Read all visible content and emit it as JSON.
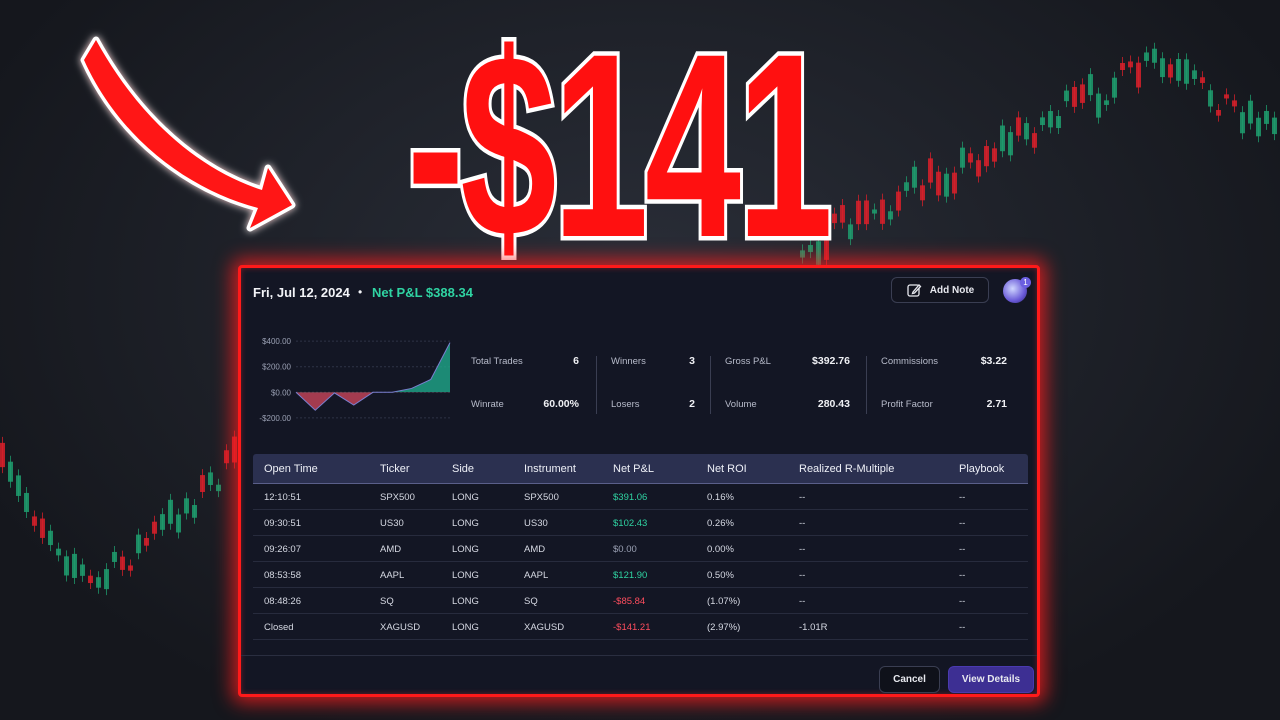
{
  "headline": "-$141",
  "dialog": {
    "date": "Fri, Jul 12, 2024",
    "separator": "•",
    "net_pnl": "Net P&L $388.34",
    "add_note": "Add Note",
    "avatar_badge": "1",
    "mini_chart": {
      "type": "area",
      "values": [
        0,
        -140,
        -5,
        -100,
        0,
        0,
        30,
        100,
        388
      ],
      "ylim": [
        -240,
        440
      ],
      "yticks": [
        {
          "value": 400,
          "label": "$400.00"
        },
        {
          "value": 200,
          "label": "$200.00"
        },
        {
          "value": 0,
          "label": "$0.00"
        },
        {
          "value": -200,
          "label": "-$200.00"
        }
      ]
    },
    "stats": [
      [
        {
          "label": "Total Trades",
          "value": "6"
        },
        {
          "label": "Winrate",
          "value": "60.00%"
        }
      ],
      [
        {
          "label": "Winners",
          "value": "3"
        },
        {
          "label": "Losers",
          "value": "2"
        }
      ],
      [
        {
          "label": "Gross P&L",
          "value": "$392.76"
        },
        {
          "label": "Volume",
          "value": "280.43"
        }
      ],
      [
        {
          "label": "Commissions",
          "value": "$3.22"
        },
        {
          "label": "Profit Factor",
          "value": "2.71"
        }
      ]
    ],
    "table": {
      "columns": [
        "Open Time",
        "Ticker",
        "Side",
        "Instrument",
        "Net P&L",
        "Net ROI",
        "Realized R-Multiple",
        "Playbook"
      ],
      "rows": [
        [
          "12:10:51",
          "SPX500",
          "LONG",
          "SPX500",
          "$391.06",
          "0.16%",
          "--",
          "--"
        ],
        [
          "09:30:51",
          "US30",
          "LONG",
          "US30",
          "$102.43",
          "0.26%",
          "--",
          "--"
        ],
        [
          "09:26:07",
          "AMD",
          "LONG",
          "AMD",
          "$0.00",
          "0.00%",
          "--",
          "--"
        ],
        [
          "08:53:58",
          "AAPL",
          "LONG",
          "AAPL",
          "$121.90",
          "0.50%",
          "--",
          "--"
        ],
        [
          "08:48:26",
          "SQ",
          "LONG",
          "SQ",
          "-$85.84",
          "(1.07%)",
          "--",
          "--"
        ],
        [
          "Closed",
          "XAGUSD",
          "LONG",
          "XAGUSD",
          "-$141.21",
          "(2.97%)",
          "-1.01R",
          "--"
        ]
      ]
    },
    "cancel": "Cancel",
    "view_details": "View Details"
  }
}
